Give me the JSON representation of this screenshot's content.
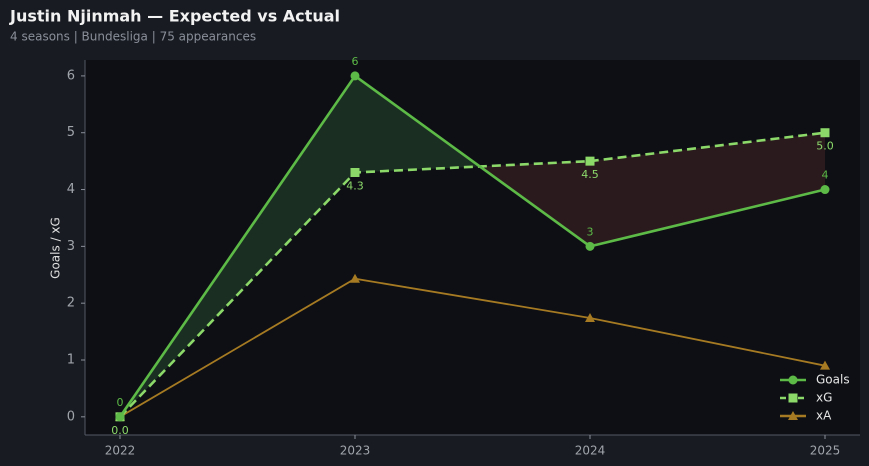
{
  "chart_data": {
    "type": "line",
    "title": "Justin Njinmah — Expected vs Actual",
    "subtitle": "4 seasons | Bundesliga | 75 appearances",
    "y_label": "Goals / xG",
    "categories": [
      "2022",
      "2023",
      "2024",
      "2025"
    ],
    "series": [
      {
        "name": "Goals",
        "color": "#5dba47",
        "marker": "circle",
        "dash": false,
        "values": [
          0,
          6,
          3,
          4
        ]
      },
      {
        "name": "xG",
        "color": "#8cd96a",
        "marker": "square",
        "dash": true,
        "values": [
          0.0,
          4.3,
          4.5,
          5.0
        ],
        "value_labels": [
          "0.0",
          "4.3",
          "4.5",
          "5.0"
        ]
      },
      {
        "name": "xA",
        "color": "#a57a22",
        "marker": "triangle",
        "dash": false,
        "values": [
          0,
          2.43,
          1.74,
          0.9
        ]
      }
    ],
    "fill_colors": {
      "above": "#1c3322",
      "below": "#2e1c1f"
    },
    "ylim": [
      -0.32,
      6.28
    ],
    "yticks": [
      0,
      1,
      2,
      3,
      4,
      5,
      6
    ],
    "legend": "lower right"
  }
}
